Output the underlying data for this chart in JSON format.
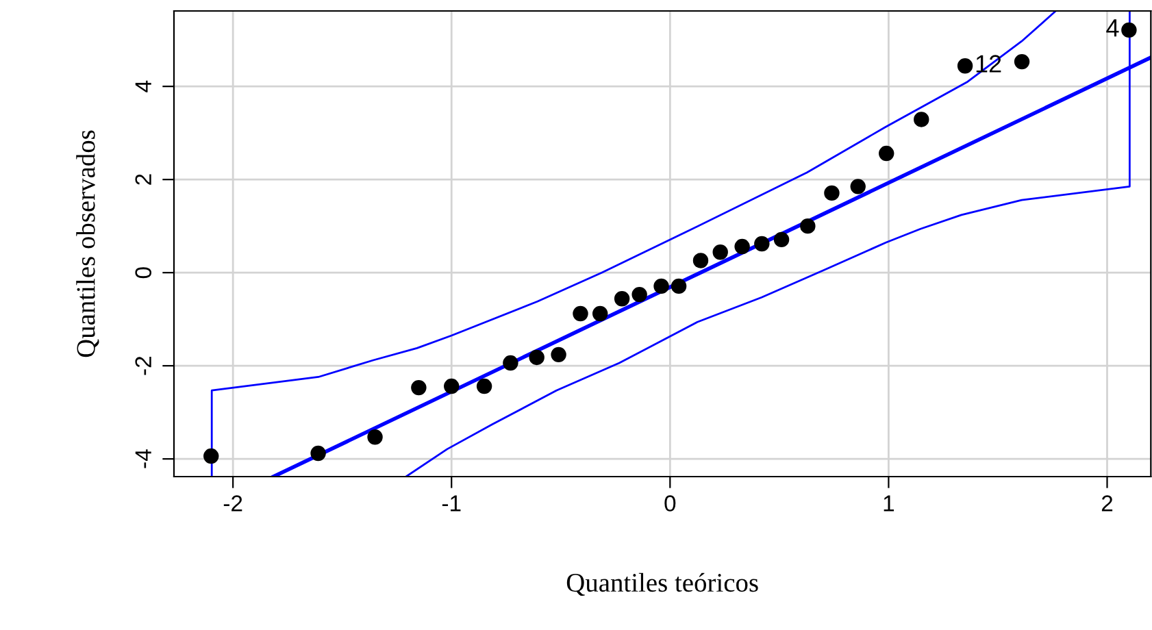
{
  "chart_data": {
    "type": "line",
    "xlabel": "Quantiles teóricos",
    "ylabel": "Quantiles observados",
    "xlim": [
      -2.27,
      2.2
    ],
    "ylim": [
      -4.38,
      5.62
    ],
    "xticks": [
      -2,
      -1,
      0,
      1,
      2
    ],
    "yticks": [
      -4,
      -2,
      0,
      2,
      4
    ],
    "grid": true,
    "series": [
      {
        "type": "scatter",
        "marker": "circle",
        "color": "#000000",
        "x": [
          -2.1,
          -1.61,
          -1.35,
          -1.15,
          -1.0,
          -0.85,
          -0.73,
          -0.61,
          -0.51,
          -0.41,
          -0.32,
          -0.22,
          -0.14,
          -0.04,
          0.04,
          0.14,
          0.23,
          0.33,
          0.42,
          0.51,
          0.63,
          0.74,
          0.86,
          0.99,
          1.15,
          1.35,
          1.61,
          2.1
        ],
        "values": [
          -3.94,
          -3.88,
          -3.53,
          -2.47,
          -2.44,
          -2.44,
          -1.94,
          -1.82,
          -1.76,
          -0.88,
          -0.88,
          -0.56,
          -0.47,
          -0.29,
          -0.29,
          0.26,
          0.44,
          0.56,
          0.62,
          0.71,
          1.0,
          1.71,
          1.85,
          2.56,
          3.29,
          4.44,
          4.53,
          5.21
        ]
      },
      {
        "color": "#0000ff",
        "marker": "none",
        "x": [
          -1.815,
          2.2
        ],
        "values": [
          -4.38,
          4.62
        ]
      },
      {
        "color": "#0000ff",
        "marker": "none",
        "x": [
          -2.097,
          -2.097,
          -1.609,
          -1.358,
          -1.158,
          -1.0,
          -0.607,
          -0.313,
          0.063,
          0.626,
          0.983,
          1.358,
          1.609,
          1.765
        ],
        "values": [
          -4.38,
          -2.53,
          -2.24,
          -1.88,
          -1.62,
          -1.35,
          -0.62,
          0.0,
          0.85,
          2.15,
          3.12,
          4.09,
          4.97,
          5.62
        ]
      },
      {
        "color": "#0000ff",
        "marker": "none",
        "x": [
          -1.208,
          -1.02,
          -0.814,
          -0.52,
          -0.232,
          0.125,
          0.419,
          0.707,
          0.989,
          1.146,
          1.333,
          1.609,
          2.103,
          2.103
        ],
        "values": [
          -4.38,
          -3.79,
          -3.26,
          -2.53,
          -1.94,
          -1.06,
          -0.53,
          0.06,
          0.65,
          0.94,
          1.24,
          1.56,
          1.85,
          5.62
        ]
      }
    ],
    "annotations": [
      {
        "text": "12",
        "x": 1.35,
        "y": 4.44
      },
      {
        "text": "4",
        "x": 2.1,
        "y": 5.21
      }
    ]
  }
}
